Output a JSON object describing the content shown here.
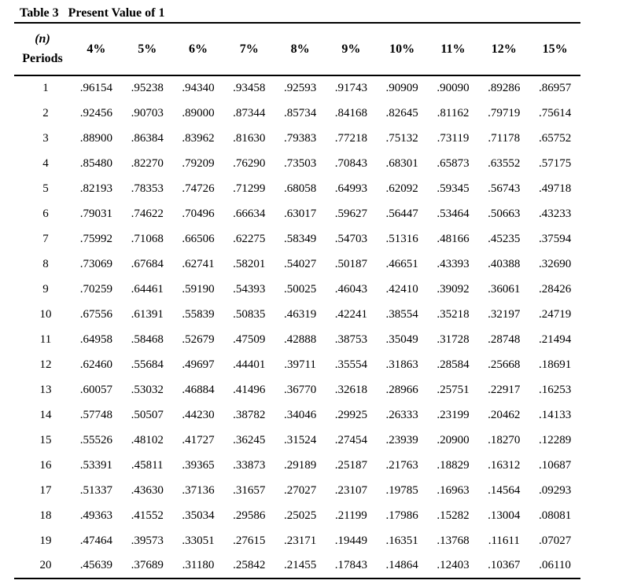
{
  "title": {
    "label": "Table 3",
    "text": "Present Value of 1"
  },
  "table": {
    "period_header_line1": "(n)",
    "period_header_line2": "Periods",
    "columns": [
      "4%",
      "5%",
      "6%",
      "7%",
      "8%",
      "9%",
      "10%",
      "11%",
      "12%",
      "15%"
    ],
    "rows": [
      {
        "period": "1",
        "values": [
          ".96154",
          ".95238",
          ".94340",
          ".93458",
          ".92593",
          ".91743",
          ".90909",
          ".90090",
          ".89286",
          ".86957"
        ]
      },
      {
        "period": "2",
        "values": [
          ".92456",
          ".90703",
          ".89000",
          ".87344",
          ".85734",
          ".84168",
          ".82645",
          ".81162",
          ".79719",
          ".75614"
        ]
      },
      {
        "period": "3",
        "values": [
          ".88900",
          ".86384",
          ".83962",
          ".81630",
          ".79383",
          ".77218",
          ".75132",
          ".73119",
          ".71178",
          ".65752"
        ]
      },
      {
        "period": "4",
        "values": [
          ".85480",
          ".82270",
          ".79209",
          ".76290",
          ".73503",
          ".70843",
          ".68301",
          ".65873",
          ".63552",
          ".57175"
        ]
      },
      {
        "period": "5",
        "values": [
          ".82193",
          ".78353",
          ".74726",
          ".71299",
          ".68058",
          ".64993",
          ".62092",
          ".59345",
          ".56743",
          ".49718"
        ]
      },
      {
        "period": "6",
        "values": [
          ".79031",
          ".74622",
          ".70496",
          ".66634",
          ".63017",
          ".59627",
          ".56447",
          ".53464",
          ".50663",
          ".43233"
        ]
      },
      {
        "period": "7",
        "values": [
          ".75992",
          ".71068",
          ".66506",
          ".62275",
          ".58349",
          ".54703",
          ".51316",
          ".48166",
          ".45235",
          ".37594"
        ]
      },
      {
        "period": "8",
        "values": [
          ".73069",
          ".67684",
          ".62741",
          ".58201",
          ".54027",
          ".50187",
          ".46651",
          ".43393",
          ".40388",
          ".32690"
        ]
      },
      {
        "period": "9",
        "values": [
          ".70259",
          ".64461",
          ".59190",
          ".54393",
          ".50025",
          ".46043",
          ".42410",
          ".39092",
          ".36061",
          ".28426"
        ]
      },
      {
        "period": "10",
        "values": [
          ".67556",
          ".61391",
          ".55839",
          ".50835",
          ".46319",
          ".42241",
          ".38554",
          ".35218",
          ".32197",
          ".24719"
        ]
      },
      {
        "period": "11",
        "values": [
          ".64958",
          ".58468",
          ".52679",
          ".47509",
          ".42888",
          ".38753",
          ".35049",
          ".31728",
          ".28748",
          ".21494"
        ]
      },
      {
        "period": "12",
        "values": [
          ".62460",
          ".55684",
          ".49697",
          ".44401",
          ".39711",
          ".35554",
          ".31863",
          ".28584",
          ".25668",
          ".18691"
        ]
      },
      {
        "period": "13",
        "values": [
          ".60057",
          ".53032",
          ".46884",
          ".41496",
          ".36770",
          ".32618",
          ".28966",
          ".25751",
          ".22917",
          ".16253"
        ]
      },
      {
        "period": "14",
        "values": [
          ".57748",
          ".50507",
          ".44230",
          ".38782",
          ".34046",
          ".29925",
          ".26333",
          ".23199",
          ".20462",
          ".14133"
        ]
      },
      {
        "period": "15",
        "values": [
          ".55526",
          ".48102",
          ".41727",
          ".36245",
          ".31524",
          ".27454",
          ".23939",
          ".20900",
          ".18270",
          ".12289"
        ]
      },
      {
        "period": "16",
        "values": [
          ".53391",
          ".45811",
          ".39365",
          ".33873",
          ".29189",
          ".25187",
          ".21763",
          ".18829",
          ".16312",
          ".10687"
        ]
      },
      {
        "period": "17",
        "values": [
          ".51337",
          ".43630",
          ".37136",
          ".31657",
          ".27027",
          ".23107",
          ".19785",
          ".16963",
          ".14564",
          ".09293"
        ]
      },
      {
        "period": "18",
        "values": [
          ".49363",
          ".41552",
          ".35034",
          ".29586",
          ".25025",
          ".21199",
          ".17986",
          ".15282",
          ".13004",
          ".08081"
        ]
      },
      {
        "period": "19",
        "values": [
          ".47464",
          ".39573",
          ".33051",
          ".27615",
          ".23171",
          ".19449",
          ".16351",
          ".13768",
          ".11611",
          ".07027"
        ]
      },
      {
        "period": "20",
        "values": [
          ".45639",
          ".37689",
          ".31180",
          ".25842",
          ".21455",
          ".17843",
          ".14864",
          ".12403",
          ".10367",
          ".06110"
        ]
      }
    ]
  },
  "colors": {
    "text": "#000000",
    "background": "#ffffff",
    "rule": "#000000"
  }
}
